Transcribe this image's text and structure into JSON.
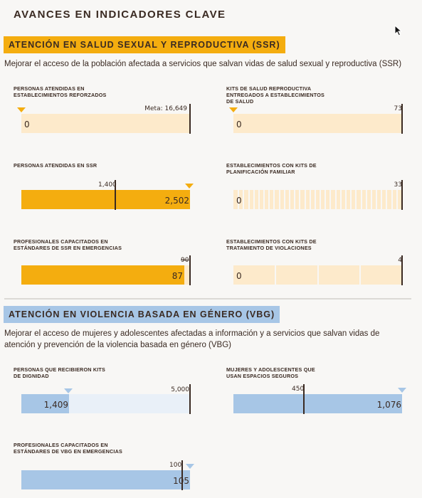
{
  "page": {
    "title": "AVANCES EN INDICADORES CLAVE"
  },
  "colors": {
    "ssr_fill": "#f4ad0f",
    "ssr_track": "#fdeacb",
    "vbg_fill": "#a7c6e6",
    "vbg_track": "#e9f0f8",
    "ink": "#3a2a22"
  },
  "ssr": {
    "title": "ATENCIÓN EN SALUD SEXUAL Y REPRODUCTIVA (SSR)",
    "description": "Mejorar el acceso de la población afectada a servicios que salvan vidas de salud sexual y reproductiva (SSR)",
    "indicators": [
      {
        "label": "PERSONAS ATENDIDAS EN ESTABLECIMIENTOS REFORZADOS",
        "value": "0",
        "target_label": "Meta:",
        "target": "16,649",
        "progress": 0
      },
      {
        "label": "KITS DE SALUD REPRODUCTIVA ENTREGADOS A ESTABLECIMIENTOS DE SALUD",
        "value": "0",
        "target": "73",
        "progress": 0
      },
      {
        "label": "PERSONAS ATENDIDAS EN SSR",
        "value": "2,502",
        "target": "1,400",
        "progress": 1.0
      },
      {
        "label": "ESTABLECIMIENTOS CON KITS DE PLANIFICACIÓN FAMILIAR",
        "value": "0",
        "target": "33",
        "progress": 0,
        "segments": 33
      },
      {
        "label": "PROFESIONALES CAPACITADOS EN ESTÁNDARES DE SSR EN EMERGENCIAS",
        "value": "87",
        "target": "90",
        "progress": 0.967
      },
      {
        "label": "ESTABLECIMIENTOS CON KITS DE TRATAMIENTO DE VIOLACIONES",
        "value": "0",
        "target": "4",
        "progress": 0,
        "segments": 4
      }
    ]
  },
  "vbg": {
    "title": "ATENCIÓN EN VIOLENCIA BASADA EN GÉNERO (VBG)",
    "description": "Mejorar el acceso de mujeres y adolescentes afectadas a información y a servicios que salvan vidas de atención y prevención de la violencia basada en género (VBG)",
    "indicators": [
      {
        "label": "PERSONAS QUE RECIBIERON KITS DE DIGNIDAD",
        "value": "1,409",
        "target": "5,000",
        "progress": 0.282
      },
      {
        "label": "MUJERES Y ADOLESCENTES QUE USAN ESPACIOS SEGUROS",
        "value": "1,076",
        "target": "450",
        "progress": 1.0
      },
      {
        "label": "PROFESIONALES CAPACITADOS EN ESTÁNDARES DE VBG EN EMERGENCIAS",
        "value": "105",
        "target": "100",
        "progress": 1.0
      }
    ]
  }
}
